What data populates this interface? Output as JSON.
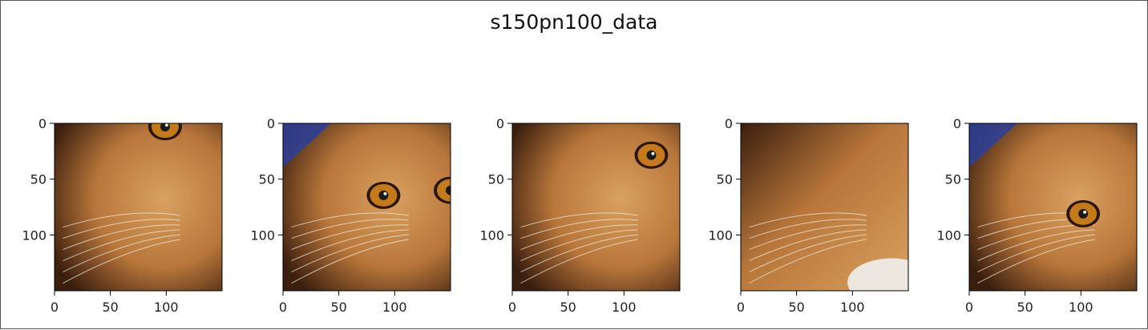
{
  "chart_data": {
    "type": "image_grid",
    "title": "s150pn100_data",
    "panels": [
      {
        "name": "patch-1",
        "xlim": [
          0,
          150
        ],
        "ylim": [
          150,
          0
        ],
        "xticks": [
          0,
          50,
          100
        ],
        "yticks": [
          0,
          50,
          100
        ],
        "content": "cat-face-crop"
      },
      {
        "name": "patch-2",
        "xlim": [
          0,
          150
        ],
        "ylim": [
          150,
          0
        ],
        "xticks": [
          0,
          50,
          100
        ],
        "yticks": [
          0,
          50,
          100
        ],
        "content": "cat-face-crop"
      },
      {
        "name": "patch-3",
        "xlim": [
          0,
          150
        ],
        "ylim": [
          150,
          0
        ],
        "xticks": [
          0,
          50,
          100
        ],
        "yticks": [
          0,
          50,
          100
        ],
        "content": "cat-face-crop"
      },
      {
        "name": "patch-4",
        "xlim": [
          0,
          150
        ],
        "ylim": [
          150,
          0
        ],
        "xticks": [
          0,
          50,
          100
        ],
        "yticks": [
          0,
          50,
          100
        ],
        "content": "cat-body-crop"
      },
      {
        "name": "patch-5",
        "xlim": [
          0,
          150
        ],
        "ylim": [
          150,
          0
        ],
        "xticks": [
          0,
          50,
          100
        ],
        "yticks": [
          0,
          50,
          100
        ],
        "content": "cat-face-crop"
      }
    ],
    "colors": {
      "fur_light": "#d9a15f",
      "fur_mid": "#b8763a",
      "fur_dark": "#3a1e0e",
      "eye": "#c47a1a",
      "background_blue": "#2b3f9a"
    }
  }
}
